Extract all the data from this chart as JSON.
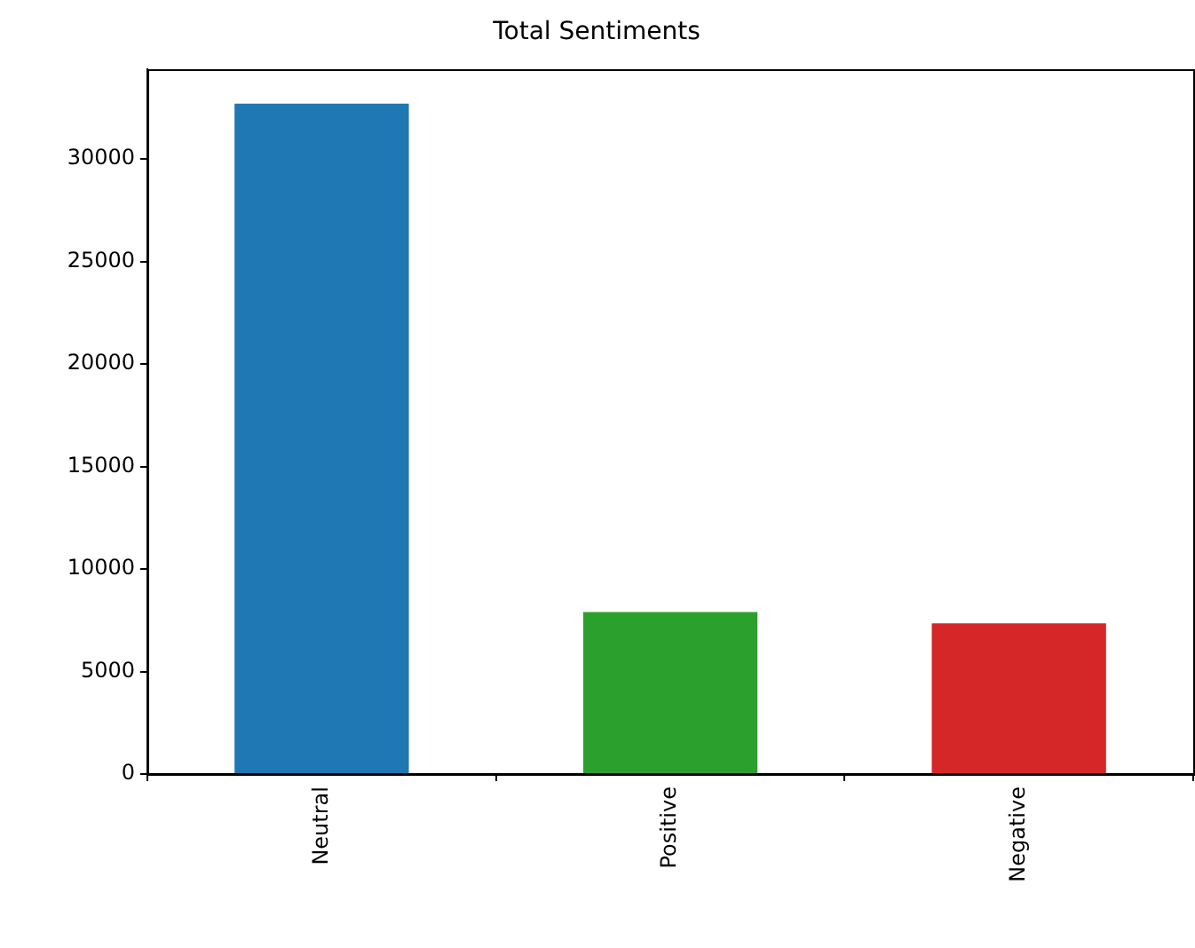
{
  "chart_data": {
    "type": "bar",
    "title": "Total Sentiments",
    "categories": [
      "Neutral",
      "Positive",
      "Negative"
    ],
    "values": [
      32700,
      7900,
      7350
    ],
    "colors": [
      "#1f77b4",
      "#2ca02c",
      "#d62728"
    ],
    "ylim": [
      0,
      34400
    ],
    "yticks": [
      0,
      5000,
      10000,
      15000,
      20000,
      25000,
      30000
    ],
    "grid": false,
    "legend": false
  }
}
